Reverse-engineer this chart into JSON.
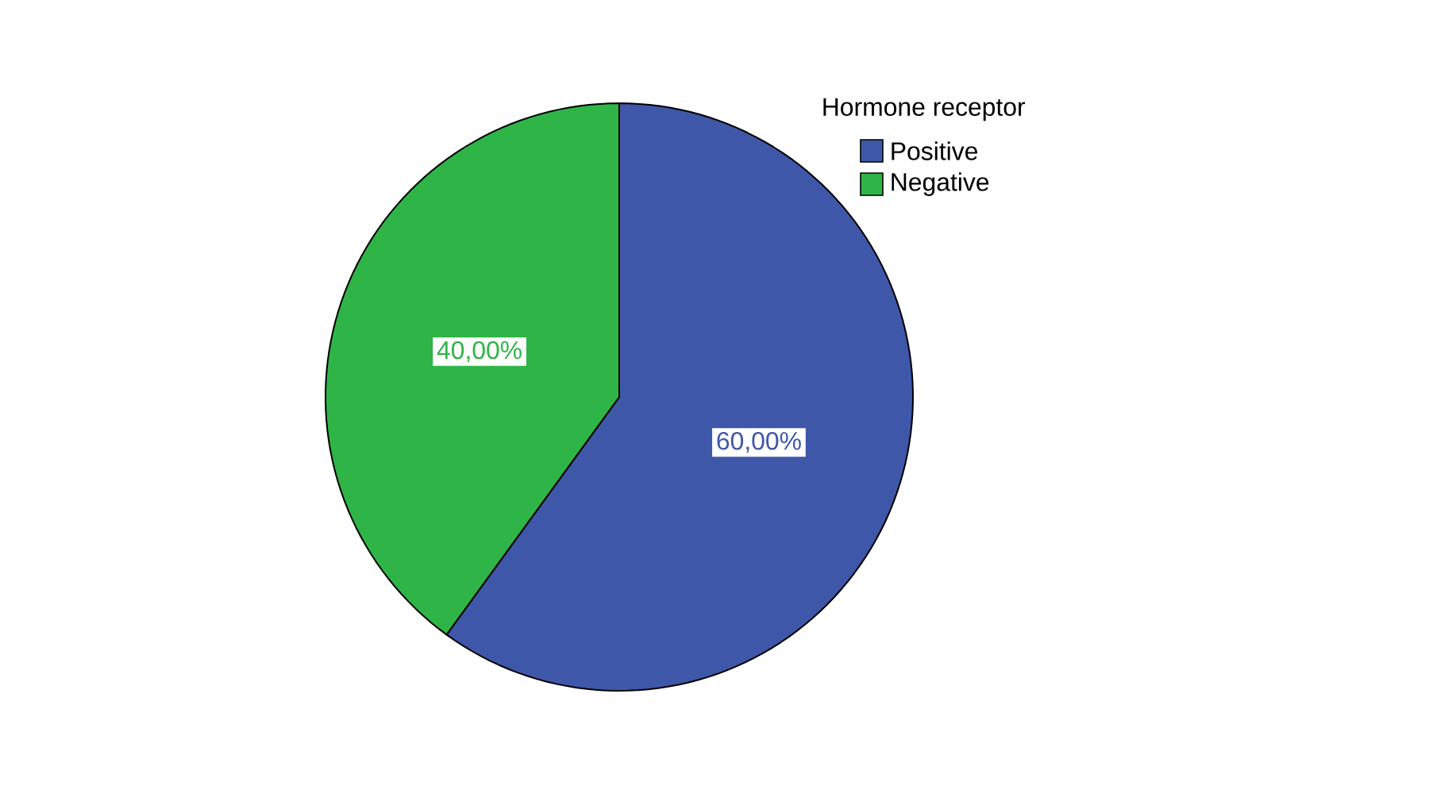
{
  "chart_data": {
    "type": "pie",
    "legend_title": "Hormone receptor",
    "legend": "top right",
    "categories": [
      "Positive",
      "Negative"
    ],
    "values": [
      60,
      40
    ],
    "colors": [
      "#3f57a8",
      "#2fb547"
    ],
    "value_labels": [
      "60,00%",
      "40,00%"
    ]
  }
}
